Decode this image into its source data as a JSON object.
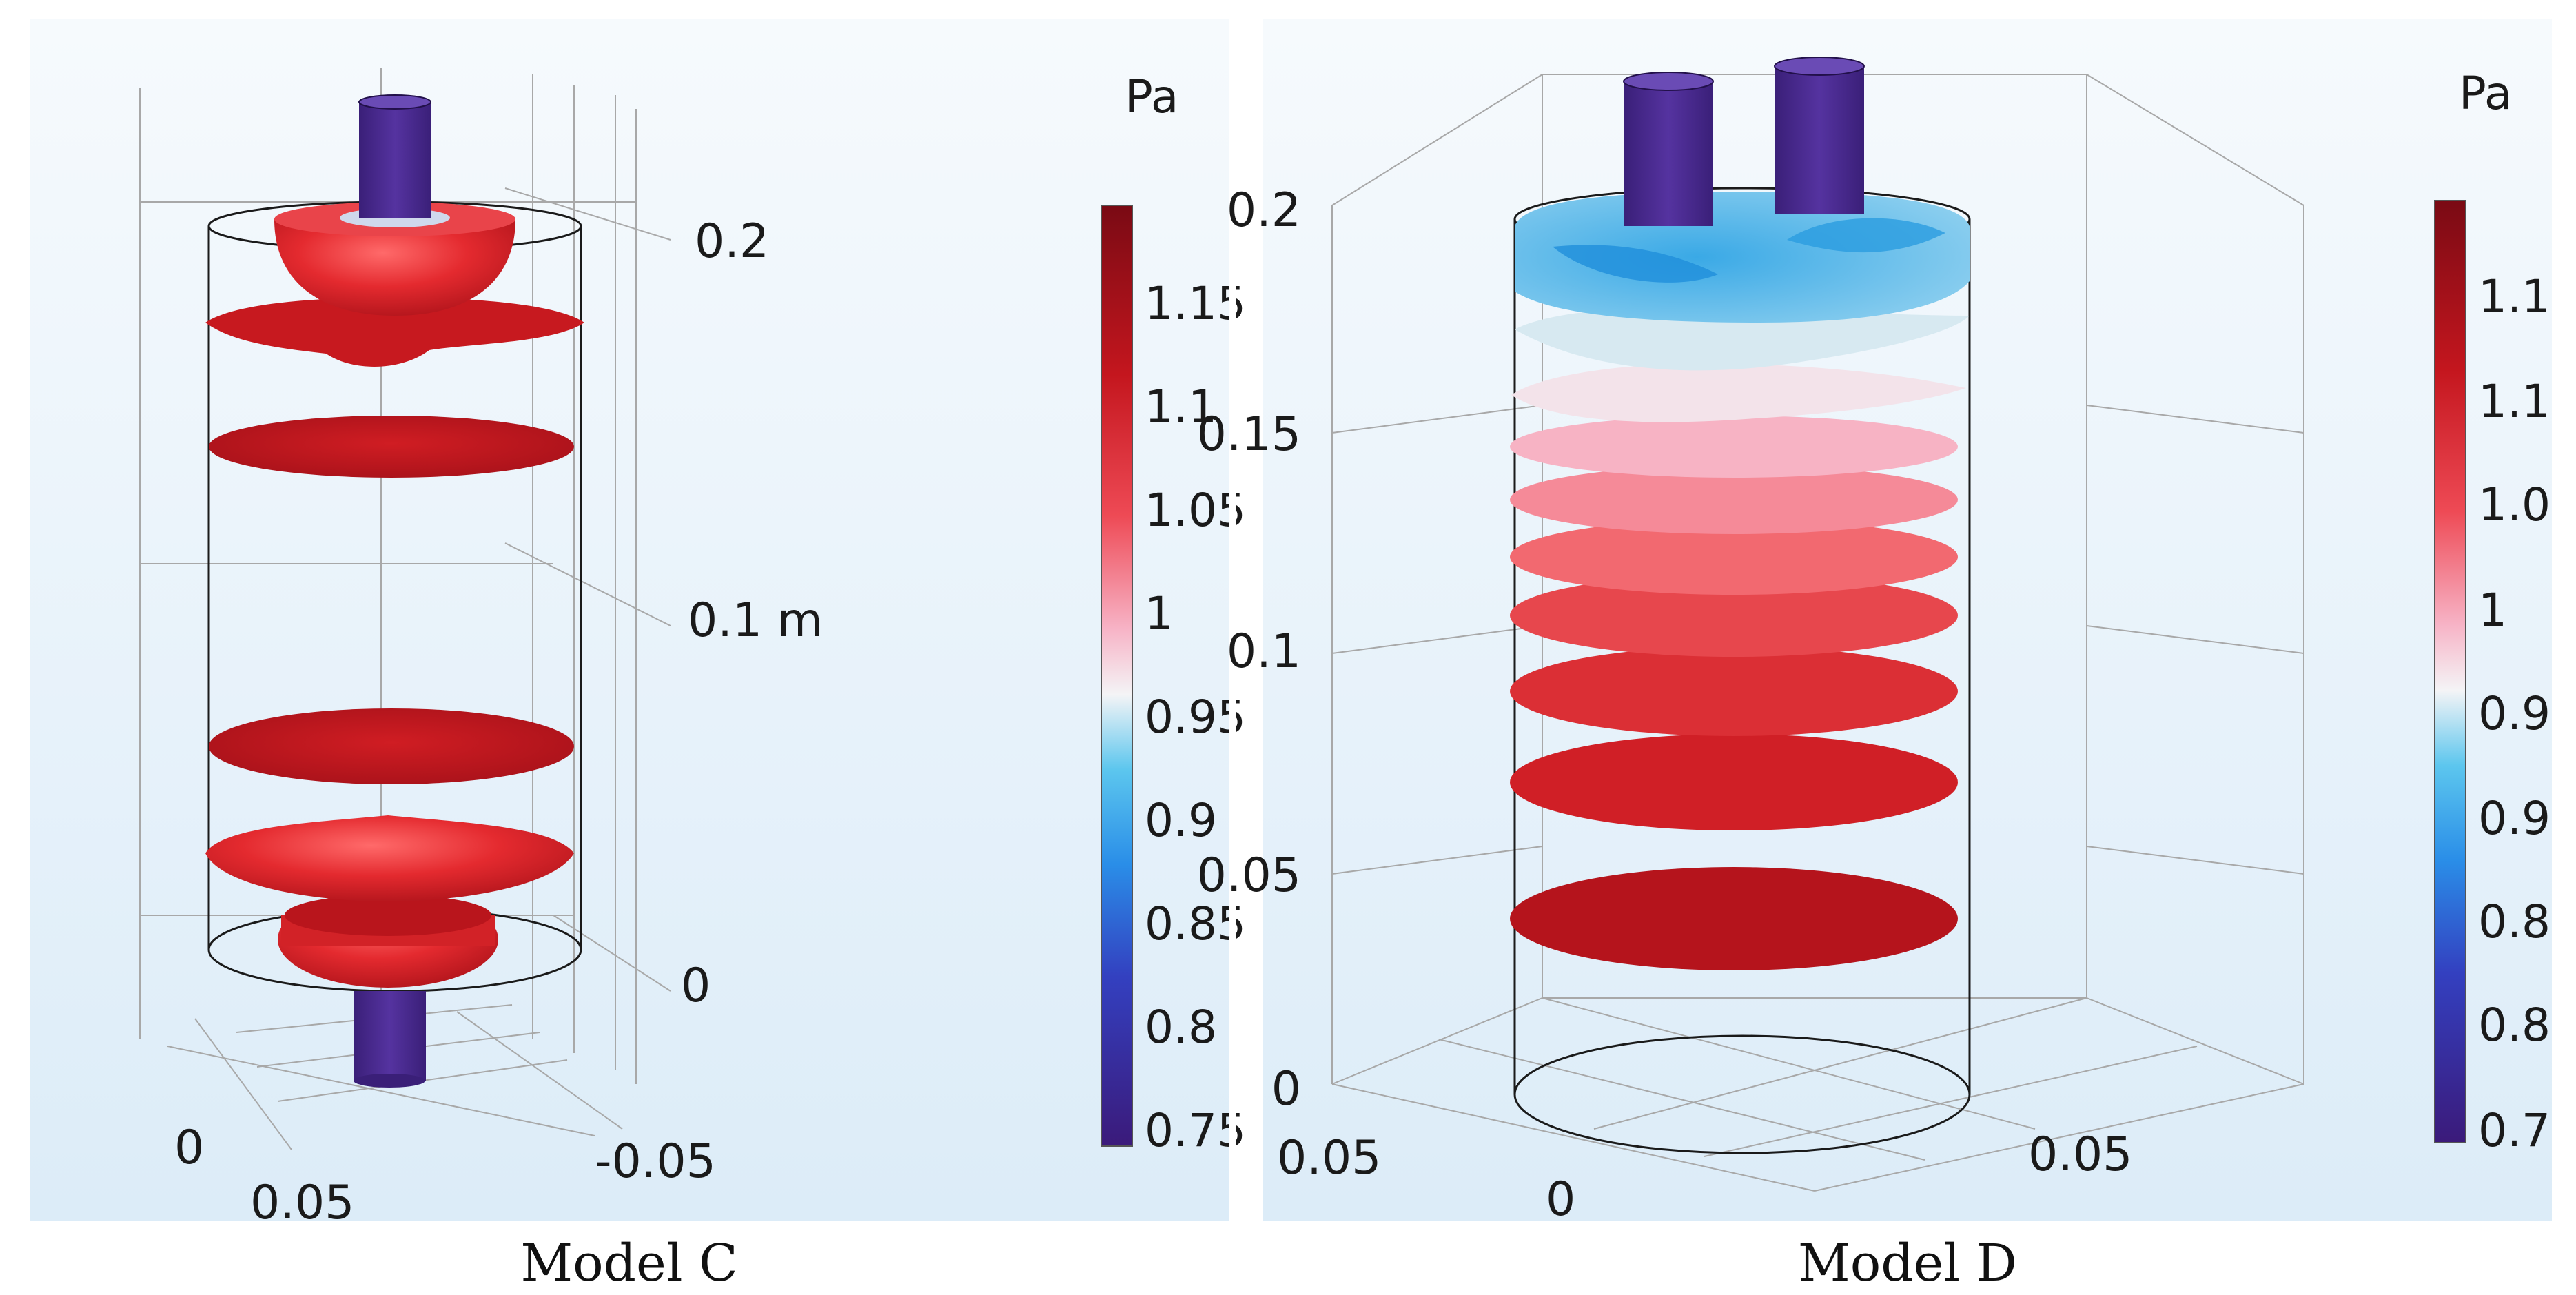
{
  "panels": [
    {
      "caption": "Model C",
      "colorbar_unit": "Pa",
      "colorbar_ticks": [
        "1.15",
        "1.1",
        "1.05",
        "1",
        "0.95",
        "0.9",
        "0.85",
        "0.8",
        "0.75"
      ],
      "z_ticks": [
        "0.2",
        "0.1 m",
        "0"
      ],
      "x_ticks": [
        "0",
        "0.05"
      ],
      "y_ticks": [
        "-0.05"
      ]
    },
    {
      "caption": "Model D",
      "colorbar_unit": "Pa",
      "colorbar_ticks": [
        "1.1",
        "1.1",
        "1.0",
        "1",
        "0.9",
        "0.9",
        "0.8",
        "0.8",
        "0.7"
      ],
      "z_ticks": [
        "0.2",
        "0.15",
        "0.1",
        "0.05",
        "0"
      ],
      "x_ticks": [
        "0.05",
        "0"
      ],
      "y_ticks": [
        "0.05"
      ]
    }
  ],
  "colors": {
    "background_top": "#f5f9fd",
    "background_bottom": "#deedf8",
    "red_surface": "#c8191f",
    "inlet_pipe": "#4a2a8c",
    "colorbar_top": "#7a0a14",
    "colorbar_bottom": "#3b1a7a"
  }
}
